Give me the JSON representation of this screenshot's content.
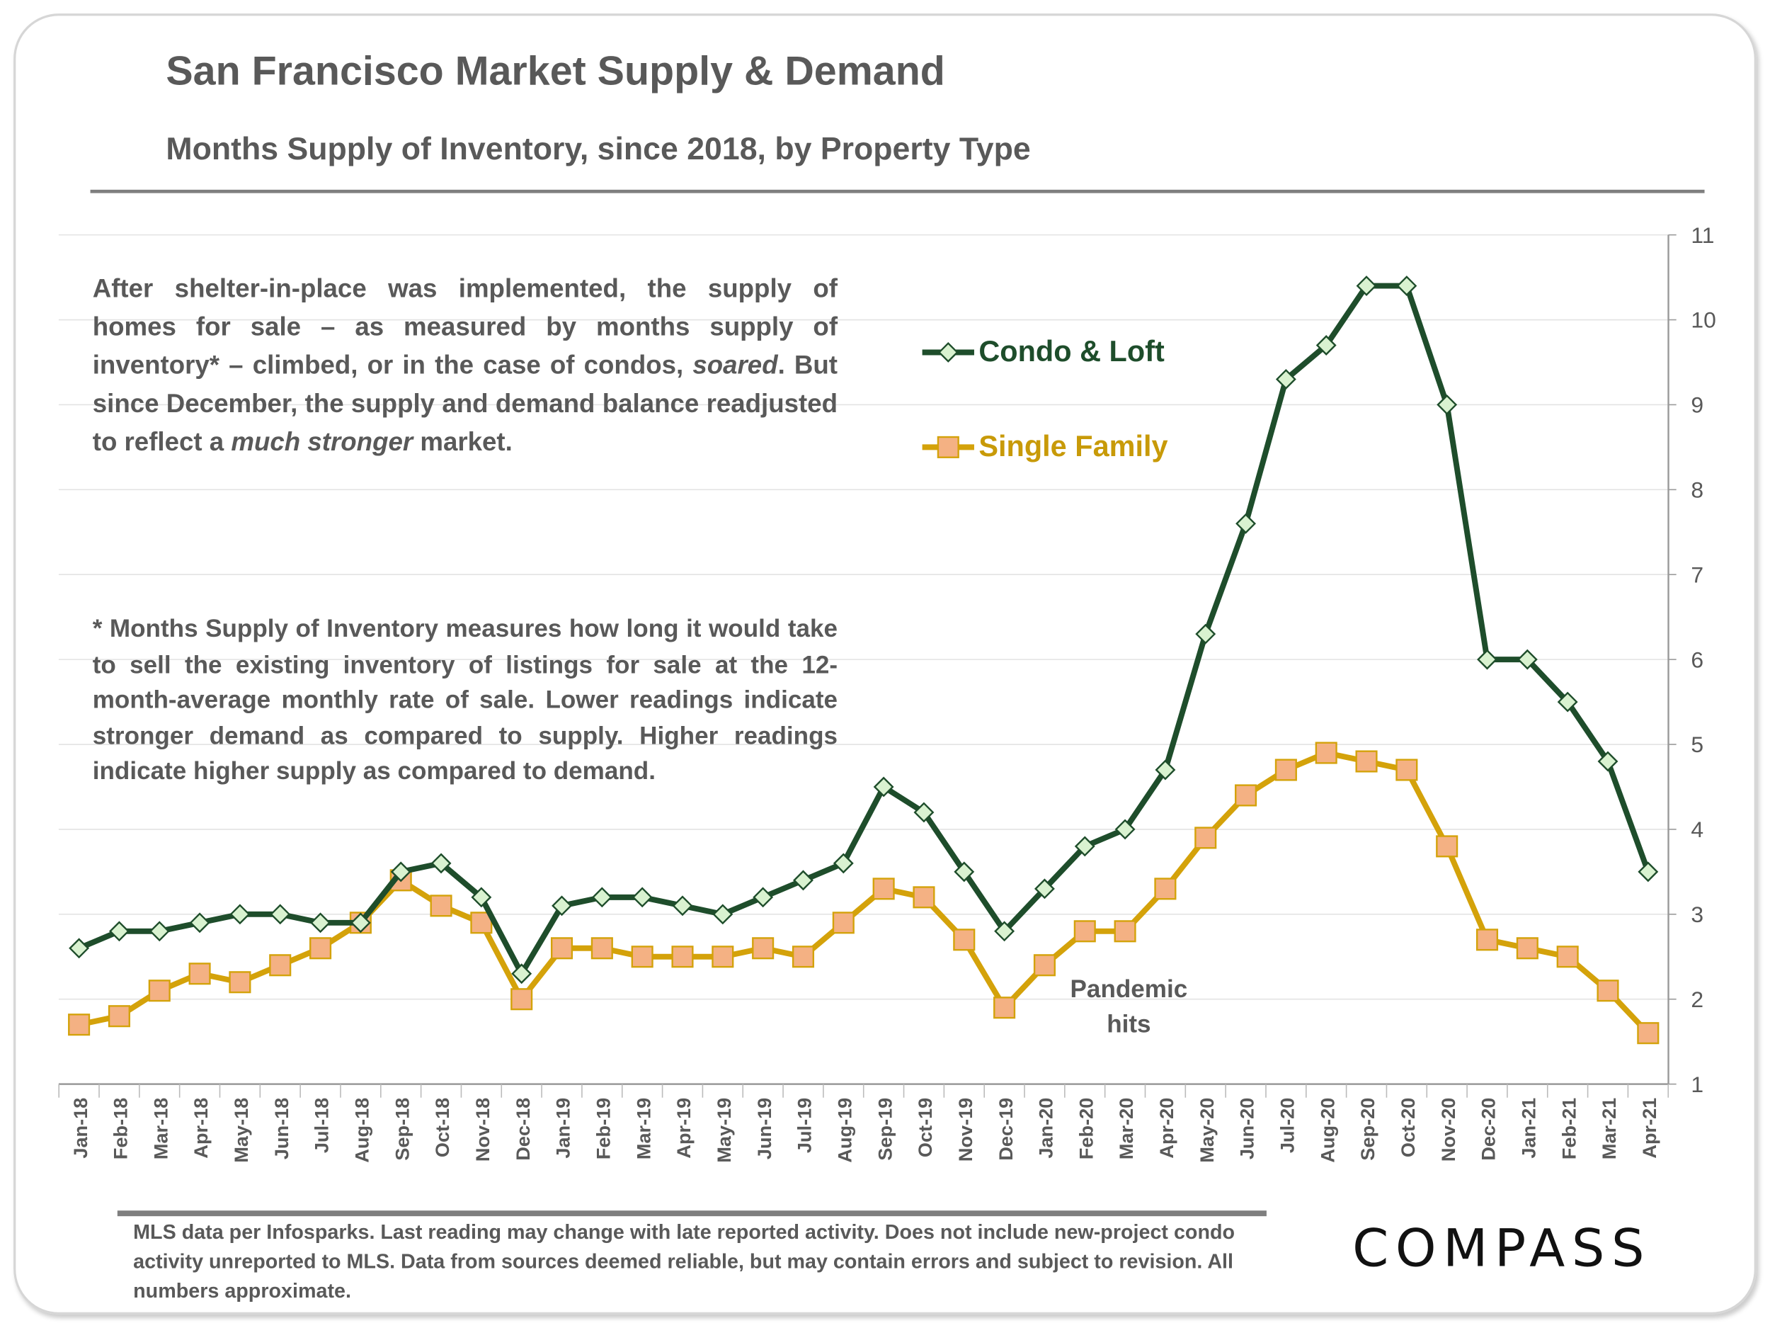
{
  "title": "San Francisco Market Supply & Demand",
  "subtitle": "Months Supply of Inventory, since 2018, by Property Type",
  "paragraph1": {
    "before": "After shelter-in-place was implemented, the supply of homes for sale – as measured by months supply of inventory* – climbed, or in the case of condos, ",
    "em1": "soared",
    "mid": ". But since December, the supply and demand balance readjusted to reflect a ",
    "em2": "much stronger",
    "after": " market."
  },
  "paragraph2": "* Months Supply of Inventory measures how long it would take to sell the existing inventory of listings for sale at the 12-month-average monthly rate of sale. Lower readings indicate stronger demand as compared to supply. Higher readings indicate higher supply as compared to demand.",
  "annotation": "Pandemic hits",
  "footnote": "MLS data per Infosparks. Last reading may change with late reported activity. Does not include new-project condo activity unreported to MLS. Data from sources deemed reliable, but may contain errors and subject to revision. All numbers approximate.",
  "logo": "COMPASS",
  "chart_data": {
    "type": "line",
    "categories": [
      "Jan-18",
      "Feb-18",
      "Mar-18",
      "Apr-18",
      "May-18",
      "Jun-18",
      "Jul-18",
      "Aug-18",
      "Sep-18",
      "Oct-18",
      "Nov-18",
      "Dec-18",
      "Jan-19",
      "Feb-19",
      "Mar-19",
      "Apr-19",
      "May-19",
      "Jun-19",
      "Jul-19",
      "Aug-19",
      "Sep-19",
      "Oct-19",
      "Nov-19",
      "Dec-19",
      "Jan-20",
      "Feb-20",
      "Mar-20",
      "Apr-20",
      "May-20",
      "Jun-20",
      "Jul-20",
      "Aug-20",
      "Sep-20",
      "Oct-20",
      "Nov-20",
      "Dec-20",
      "Jan-21",
      "Feb-21",
      "Mar-21",
      "Apr-21"
    ],
    "series": [
      {
        "name": "Condo & Loft",
        "color": "#1e4d2b",
        "marker": "diamond",
        "marker_fill": "#d9f2d0",
        "values": [
          2.6,
          2.8,
          2.8,
          2.9,
          3.0,
          3.0,
          2.9,
          2.9,
          3.5,
          3.6,
          3.2,
          2.3,
          3.1,
          3.2,
          3.2,
          3.1,
          3.0,
          3.2,
          3.4,
          3.6,
          4.5,
          4.2,
          3.5,
          2.8,
          3.3,
          3.8,
          4.0,
          4.7,
          6.3,
          7.6,
          9.3,
          9.7,
          10.4,
          10.4,
          9.0,
          6.0,
          6.0,
          5.5,
          4.8,
          3.5
        ]
      },
      {
        "name": "Single Family",
        "color": "#d4a20a",
        "marker": "square",
        "marker_fill": "#f4b183",
        "values": [
          1.7,
          1.8,
          2.1,
          2.3,
          2.2,
          2.4,
          2.6,
          2.9,
          3.4,
          3.1,
          2.9,
          2.0,
          2.6,
          2.6,
          2.5,
          2.5,
          2.5,
          2.6,
          2.5,
          2.9,
          3.3,
          3.2,
          2.7,
          1.9,
          2.4,
          2.8,
          2.8,
          3.3,
          3.9,
          4.4,
          4.7,
          4.9,
          4.8,
          4.7,
          3.8,
          2.7,
          2.6,
          2.5,
          2.1,
          1.6
        ]
      }
    ],
    "yaxis_position": "right",
    "ylim": [
      1,
      11
    ],
    "yticks": [
      "1",
      "2",
      "3",
      "4",
      "5",
      "6",
      "7",
      "8",
      "9",
      "10",
      "11"
    ],
    "grid": true,
    "legend_placement": "top-center"
  }
}
